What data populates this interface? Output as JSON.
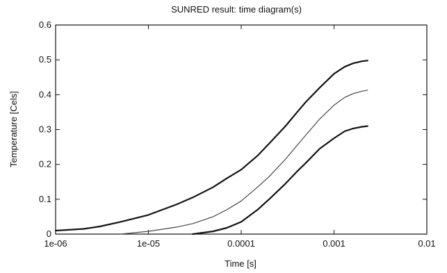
{
  "chart_data": {
    "type": "line",
    "title": "SUNRED result: time diagram(s)",
    "xlabel": "Time  [s]",
    "ylabel": "Temperature  [Cels]",
    "xscale": "log",
    "xlim": [
      1e-06,
      0.01
    ],
    "ylim": [
      0,
      0.6
    ],
    "grid": false,
    "legend": "none",
    "x_ticks": [
      {
        "value": 1e-06,
        "label": "1e-06"
      },
      {
        "value": 1e-05,
        "label": "1e-05"
      },
      {
        "value": 0.0001,
        "label": "0.0001"
      },
      {
        "value": 0.001,
        "label": "0.001"
      },
      {
        "value": 0.01,
        "label": "0.01"
      }
    ],
    "y_ticks": [
      {
        "value": 0,
        "label": "0"
      },
      {
        "value": 0.1,
        "label": "0.1"
      },
      {
        "value": 0.2,
        "label": "0.2"
      },
      {
        "value": 0.3,
        "label": "0.3"
      },
      {
        "value": 0.4,
        "label": "0.4"
      },
      {
        "value": 0.5,
        "label": "0.5"
      },
      {
        "value": 0.6,
        "label": "0.6"
      }
    ],
    "series": [
      {
        "color": "#111111",
        "width": 2.2,
        "x": [
          1e-06,
          2e-06,
          3e-06,
          5e-06,
          1e-05,
          2e-05,
          3e-05,
          5e-05,
          7e-05,
          0.0001,
          0.00015,
          0.0002,
          0.0003,
          0.0004,
          0.0005,
          0.0007,
          0.001,
          0.0013,
          0.0016,
          0.002,
          0.0023
        ],
        "y": [
          0.01,
          0.015,
          0.022,
          0.035,
          0.055,
          0.085,
          0.105,
          0.135,
          0.16,
          0.185,
          0.225,
          0.26,
          0.31,
          0.35,
          0.38,
          0.42,
          0.46,
          0.48,
          0.49,
          0.496,
          0.498
        ]
      },
      {
        "color": "#444444",
        "width": 1.2,
        "x": [
          5e-06,
          1e-05,
          2e-05,
          3e-05,
          5e-05,
          7e-05,
          0.0001,
          0.00015,
          0.0002,
          0.0003,
          0.0004,
          0.0005,
          0.0007,
          0.001,
          0.0013,
          0.0016,
          0.002,
          0.0023
        ],
        "y": [
          0.0,
          0.008,
          0.02,
          0.03,
          0.05,
          0.07,
          0.095,
          0.135,
          0.165,
          0.215,
          0.255,
          0.285,
          0.33,
          0.37,
          0.392,
          0.403,
          0.41,
          0.413
        ]
      },
      {
        "color": "#111111",
        "width": 2.2,
        "x": [
          3e-05,
          5e-05,
          7e-05,
          0.0001,
          0.00015,
          0.0002,
          0.0003,
          0.0004,
          0.0005,
          0.0007,
          0.001,
          0.0013,
          0.0016,
          0.002,
          0.0023
        ],
        "y": [
          0.0,
          0.008,
          0.018,
          0.035,
          0.07,
          0.1,
          0.145,
          0.18,
          0.205,
          0.245,
          0.275,
          0.295,
          0.303,
          0.308,
          0.31
        ]
      }
    ]
  }
}
